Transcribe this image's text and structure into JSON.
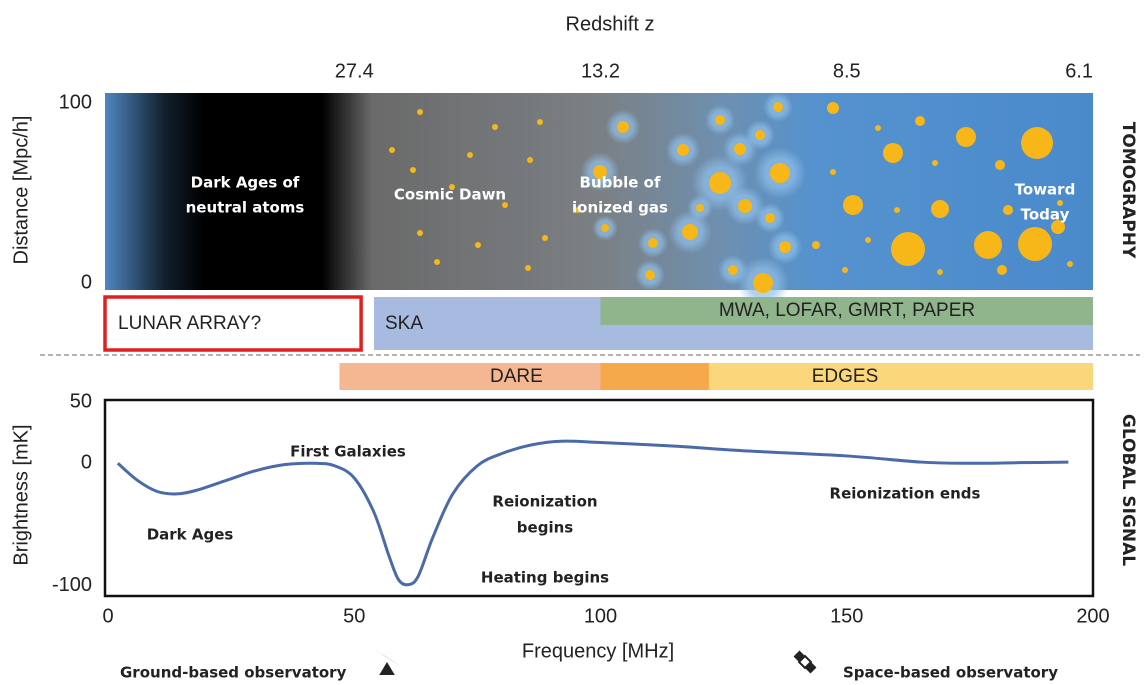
{
  "chart_data": {
    "type": "line",
    "top_axis_title": "Redshift z",
    "x2ticks": [
      {
        "value": 50,
        "label": "27.4"
      },
      {
        "value": 100,
        "label": "13.2"
      },
      {
        "value": 150,
        "label": "8.5"
      },
      {
        "value": 200,
        "label": "6.1"
      }
    ],
    "xlim": [
      0,
      200
    ],
    "xticks": [
      0,
      50,
      100,
      150,
      200
    ],
    "x_label": "Frequency [MHz]",
    "tomography": {
      "side_label": "TOMOGRAPHY",
      "y_label": "Distance [Mpc/h]",
      "ylim": [
        0,
        100
      ],
      "yticks": [
        0,
        100
      ],
      "regions": [
        [
          "Dark Ages of",
          "neutral atoms"
        ],
        [
          "Cosmic Dawn"
        ],
        [
          "Bubble of",
          "ionized gas"
        ],
        [
          "Toward",
          "Today"
        ]
      ]
    },
    "instruments": [
      {
        "name": "LUNAR ARRAY?",
        "range": [
          0,
          52
        ],
        "color": "#e02020"
      },
      {
        "name": "SKA",
        "range": [
          54,
          200
        ],
        "color": "#a7badf"
      },
      {
        "name": "MWA, LOFAR, GMRT, PAPER",
        "range": [
          100,
          200
        ],
        "color": "#90b48b"
      },
      {
        "name": "DARE",
        "range": [
          47,
          122
        ],
        "color": "#f5b791"
      },
      {
        "name": "EDGES",
        "range": [
          100,
          200
        ],
        "color": "#fbd77c"
      }
    ],
    "global_signal": {
      "side_label": "GLOBAL SIGNAL",
      "y_label": "Brightness [mK]",
      "ylim": [
        -105,
        50
      ],
      "yticks": [
        -100,
        0,
        50
      ],
      "color": "#4a6aa8",
      "x": [
        2,
        6,
        10,
        14,
        18,
        24,
        30,
        36,
        42,
        46,
        50,
        54,
        57,
        59,
        61,
        63,
        66,
        70,
        75,
        80,
        86,
        92,
        100,
        115,
        130,
        150,
        165,
        175,
        185,
        195
      ],
      "values": [
        0,
        -14,
        -23,
        -25,
        -22,
        -14,
        -6,
        -1,
        0,
        -2,
        -12,
        -40,
        -75,
        -95,
        -99,
        -92,
        -60,
        -25,
        -2,
        8,
        15,
        18,
        17,
        14,
        10,
        6,
        1,
        0,
        0.5,
        1
      ],
      "annotations": [
        [
          "Dark Ages"
        ],
        [
          "First Galaxies"
        ],
        [
          "Reionization",
          "begins"
        ],
        [
          "Heating begins"
        ],
        [
          "Reionization ends"
        ]
      ]
    },
    "legend": [
      "Ground-based observatory",
      "Space-based observatory"
    ]
  }
}
